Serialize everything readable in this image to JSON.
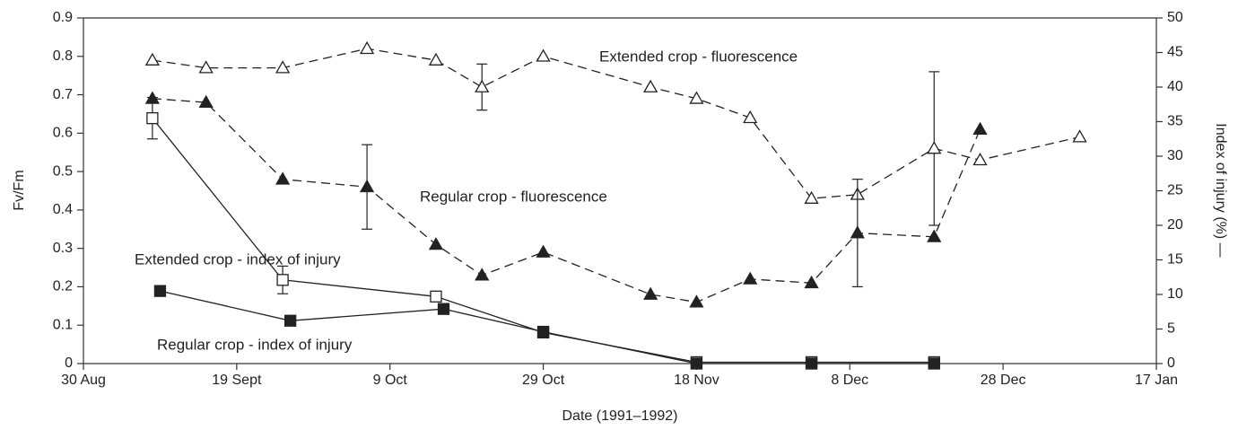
{
  "chart_data": {
    "type": "line",
    "xlabel": "Date (1991–1992)",
    "ylabel": "Fv/Fm",
    "y2label": "Index of injury (%) —",
    "xlim": [
      "1991-08-30",
      "1992-01-17"
    ],
    "xticks": [
      {
        "value": "1991-08-30",
        "label": "30 Aug"
      },
      {
        "value": "1991-09-19",
        "label": "19 Sept"
      },
      {
        "value": "1991-10-09",
        "label": "9 Oct"
      },
      {
        "value": "1991-10-29",
        "label": "29 Oct"
      },
      {
        "value": "1991-11-18",
        "label": "18 Nov"
      },
      {
        "value": "1991-12-08",
        "label": "8 Dec"
      },
      {
        "value": "1991-12-28",
        "label": "28 Dec"
      },
      {
        "value": "1992-01-17",
        "label": "17 Jan"
      }
    ],
    "ylim": [
      0,
      0.9
    ],
    "yticks": [
      0,
      0.1,
      0.2,
      0.3,
      0.4,
      0.5,
      0.6,
      0.7,
      0.8,
      0.9
    ],
    "y2lim": [
      0,
      50
    ],
    "y2ticks": [
      0,
      5,
      10,
      15,
      20,
      25,
      30,
      35,
      40,
      45,
      50
    ],
    "series": [
      {
        "name": "Extended crop - fluorescence",
        "color": "#222222",
        "marker": "triangle-open",
        "line": "dashed",
        "axis": "y",
        "x": [
          "1991-09-08",
          "1991-09-15",
          "1991-09-25",
          "1991-10-06",
          "1991-10-15",
          "1991-10-21",
          "1991-10-29",
          "1991-11-12",
          "1991-11-18",
          "1991-11-25",
          "1991-12-03",
          "1991-12-09",
          "1991-12-19",
          "1991-12-25",
          "1992-01-07"
        ],
        "values": [
          0.79,
          0.77,
          0.77,
          0.82,
          0.79,
          0.72,
          0.8,
          0.72,
          0.69,
          0.64,
          0.43,
          0.44,
          0.56,
          0.53,
          0.59
        ],
        "errors": [
          null,
          null,
          null,
          null,
          null,
          0.06,
          null,
          null,
          null,
          null,
          null,
          null,
          0.2,
          null,
          null
        ]
      },
      {
        "name": "Regular crop - fluorescence",
        "color": "#222222",
        "marker": "triangle-filled",
        "line": "dashed",
        "axis": "y",
        "x": [
          "1991-09-08",
          "1991-09-15",
          "1991-09-25",
          "1991-10-06",
          "1991-10-15",
          "1991-10-21",
          "1991-10-29",
          "1991-11-12",
          "1991-11-18",
          "1991-11-25",
          "1991-12-03",
          "1991-12-09",
          "1991-12-19",
          "1991-12-25"
        ],
        "values": [
          0.69,
          0.68,
          0.48,
          0.46,
          0.31,
          0.23,
          0.29,
          0.18,
          0.16,
          0.22,
          0.21,
          0.34,
          0.33,
          0.61
        ],
        "errors": [
          null,
          null,
          null,
          0.11,
          null,
          null,
          null,
          null,
          null,
          null,
          null,
          0.14,
          null,
          null
        ]
      },
      {
        "name": "Extended crop - index of injury",
        "color": "#222222",
        "marker": "square-open",
        "line": "solid",
        "axis": "y2",
        "x": [
          "1991-09-08",
          "1991-09-25",
          "1991-10-15",
          "1991-10-29",
          "1991-11-18",
          "1991-12-03",
          "1991-12-19"
        ],
        "values": [
          35.5,
          12.1,
          9.7,
          4.5,
          0.2,
          0.2,
          0.2
        ],
        "errors": [
          3,
          2,
          null,
          null,
          null,
          null,
          null
        ]
      },
      {
        "name": "Regular crop - index of injury",
        "color": "#222222",
        "marker": "square-filled",
        "line": "solid",
        "axis": "y2",
        "x": [
          "1991-09-09",
          "1991-09-26",
          "1991-10-16",
          "1991-10-29",
          "1991-11-18",
          "1991-12-03",
          "1991-12-19"
        ],
        "values": [
          10.5,
          6.2,
          7.9,
          4.6,
          0,
          0,
          0
        ]
      }
    ]
  }
}
